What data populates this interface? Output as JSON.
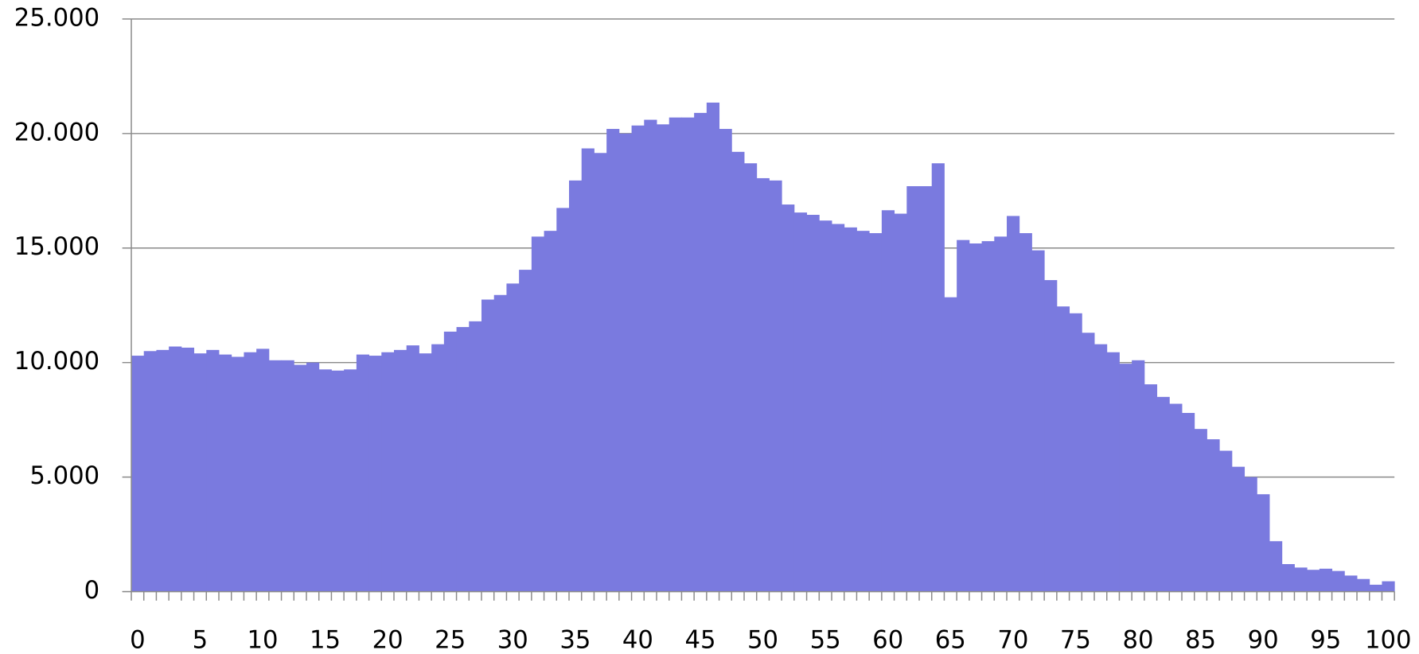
{
  "chart_data": {
    "type": "bar",
    "color": "#7a7adf",
    "grid": true,
    "categories": [
      "0",
      null,
      null,
      null,
      null,
      "5",
      null,
      null,
      null,
      null,
      "10",
      null,
      null,
      null,
      null,
      "15",
      null,
      null,
      null,
      null,
      "20",
      null,
      null,
      null,
      null,
      "25",
      null,
      null,
      null,
      null,
      "30",
      null,
      null,
      null,
      null,
      "35",
      null,
      null,
      null,
      null,
      "40",
      null,
      null,
      null,
      null,
      "45",
      null,
      null,
      null,
      null,
      "50",
      null,
      null,
      null,
      null,
      "55",
      null,
      null,
      null,
      null,
      "60",
      null,
      null,
      null,
      null,
      "65",
      null,
      null,
      null,
      null,
      "70",
      null,
      null,
      null,
      null,
      "75",
      null,
      null,
      null,
      null,
      "80",
      null,
      null,
      null,
      null,
      "85",
      null,
      null,
      null,
      null,
      "90",
      null,
      null,
      null,
      null,
      "95",
      null,
      null,
      null,
      null,
      "100"
    ],
    "values": [
      10300,
      10500,
      10550,
      10700,
      10650,
      10400,
      10550,
      10350,
      10250,
      10450,
      10600,
      10100,
      10100,
      9900,
      10000,
      9700,
      9650,
      9700,
      10350,
      10300,
      10450,
      10550,
      10750,
      10400,
      10800,
      11350,
      11550,
      11800,
      12750,
      12950,
      13450,
      14050,
      15500,
      15750,
      16750,
      17950,
      19350,
      19150,
      20200,
      20000,
      20350,
      20600,
      20400,
      20700,
      20700,
      20900,
      21350,
      20200,
      19200,
      18700,
      18050,
      17950,
      16900,
      16550,
      16450,
      16200,
      16050,
      15900,
      15750,
      15650,
      16650,
      16500,
      17700,
      17700,
      18700,
      12850,
      15350,
      15200,
      15300,
      15500,
      16400,
      15650,
      14900,
      13600,
      12450,
      12150,
      11300,
      10800,
      10450,
      9950,
      10100,
      9050,
      8500,
      8200,
      7800,
      7100,
      6650,
      6150,
      5450,
      5000,
      4250,
      2200,
      1200,
      1050,
      950,
      1000,
      900,
      700,
      550,
      300,
      450
    ],
    "ylim": [
      0,
      25000
    ],
    "yticks": [
      0,
      {
        "value": 5000,
        "label": "5.000"
      },
      {
        "value": 10000,
        "label": "10.000"
      },
      {
        "value": 15000,
        "label": "15.000"
      },
      {
        "value": 20000,
        "label": "20.000"
      },
      {
        "value": 25000,
        "label": "25.000"
      }
    ]
  }
}
